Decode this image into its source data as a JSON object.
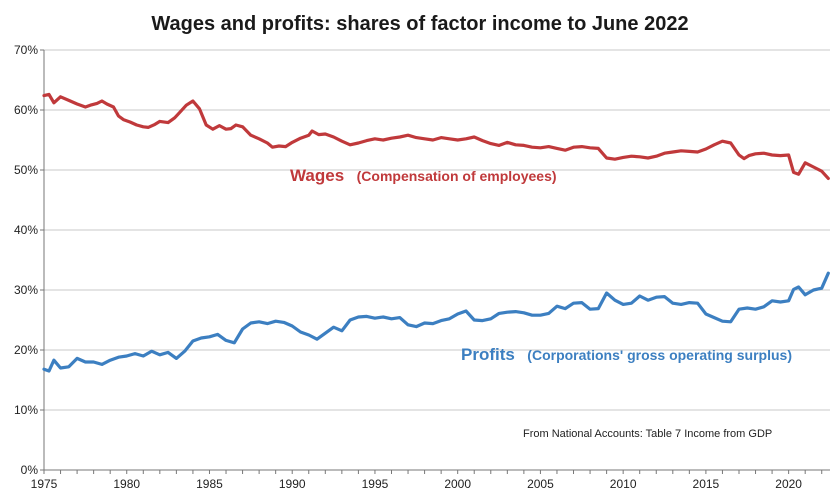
{
  "chart_data": {
    "type": "line",
    "title": "Wages and profits: shares of factor income to June 2022",
    "xlim": [
      1975,
      2022.5
    ],
    "ylim": [
      0,
      70
    ],
    "yticks": [
      0,
      10,
      20,
      30,
      40,
      50,
      60,
      70
    ],
    "ytick_labels": [
      "0%",
      "10%",
      "20%",
      "30%",
      "40%",
      "50%",
      "60%",
      "70%"
    ],
    "xticks": [
      1975,
      1980,
      1985,
      1990,
      1995,
      2000,
      2005,
      2010,
      2015,
      2020
    ],
    "xtick_labels": [
      "1975",
      "1980",
      "1985",
      "1990",
      "1995",
      "2000",
      "2005",
      "2010",
      "2015",
      "2020"
    ],
    "grid": "horizontal",
    "annotations": {
      "source": "From National Accounts: Table 7 Income from GDP"
    },
    "series": [
      {
        "name": "Wages",
        "description": "(Compensation of employees)",
        "color": "#c0393b",
        "x": [
          1975.0,
          1975.3,
          1975.6,
          1976.0,
          1976.5,
          1977.0,
          1977.5,
          1977.8,
          1978.2,
          1978.5,
          1978.8,
          1979.2,
          1979.5,
          1979.8,
          1980.2,
          1980.6,
          1981.0,
          1981.3,
          1981.7,
          1982.0,
          1982.5,
          1982.9,
          1983.2,
          1983.6,
          1984.0,
          1984.4,
          1984.8,
          1985.2,
          1985.6,
          1986.0,
          1986.3,
          1986.6,
          1987.0,
          1987.5,
          1988.0,
          1988.5,
          1988.8,
          1989.2,
          1989.6,
          1990.0,
          1990.5,
          1991.0,
          1991.2,
          1991.6,
          1992.0,
          1992.5,
          1993.0,
          1993.5,
          1994.0,
          1994.5,
          1995.0,
          1995.5,
          1996.0,
          1996.5,
          1997.0,
          1997.5,
          1998.0,
          1998.5,
          1999.0,
          1999.5,
          2000.0,
          2000.5,
          2001.0,
          2001.5,
          2002.0,
          2002.5,
          2003.0,
          2003.5,
          2004.0,
          2004.5,
          2005.0,
          2005.5,
          2006.0,
          2006.5,
          2007.0,
          2007.5,
          2008.0,
          2008.5,
          2009.0,
          2009.5,
          2010.0,
          2010.5,
          2011.0,
          2011.5,
          2012.0,
          2012.5,
          2013.0,
          2013.5,
          2014.0,
          2014.5,
          2015.0,
          2015.5,
          2016.0,
          2016.5,
          2017.0,
          2017.3,
          2017.6,
          2018.0,
          2018.5,
          2019.0,
          2019.5,
          2020.0,
          2020.3,
          2020.6,
          2021.0,
          2021.5,
          2022.0,
          2022.4
        ],
        "values": [
          62.4,
          62.6,
          61.2,
          62.2,
          61.6,
          61.0,
          60.5,
          60.8,
          61.1,
          61.5,
          61.0,
          60.5,
          59.0,
          58.4,
          58.0,
          57.5,
          57.2,
          57.1,
          57.6,
          58.1,
          57.9,
          58.7,
          59.6,
          60.8,
          61.5,
          60.2,
          57.5,
          56.8,
          57.4,
          56.8,
          56.9,
          57.5,
          57.2,
          55.8,
          55.2,
          54.5,
          53.8,
          54.0,
          53.9,
          54.6,
          55.3,
          55.8,
          56.5,
          55.9,
          56.0,
          55.5,
          54.8,
          54.2,
          54.5,
          54.9,
          55.2,
          55.0,
          55.3,
          55.5,
          55.8,
          55.4,
          55.2,
          55.0,
          55.4,
          55.2,
          55.0,
          55.2,
          55.5,
          54.9,
          54.4,
          54.1,
          54.6,
          54.2,
          54.1,
          53.8,
          53.7,
          53.9,
          53.6,
          53.3,
          53.8,
          53.9,
          53.7,
          53.6,
          52.0,
          51.8,
          52.1,
          52.3,
          52.2,
          52.0,
          52.3,
          52.8,
          53.0,
          53.2,
          53.1,
          53.0,
          53.5,
          54.2,
          54.8,
          54.5,
          52.5,
          51.9,
          52.4,
          52.7,
          52.8,
          52.5,
          52.4,
          52.5,
          49.6,
          49.3,
          51.2,
          50.5,
          49.8,
          48.6
        ]
      },
      {
        "name": "Profits",
        "description": "(Corporations' gross operating surplus)",
        "color": "#3c7fc1",
        "x": [
          1975.0,
          1975.3,
          1975.6,
          1976.0,
          1976.5,
          1977.0,
          1977.5,
          1978.0,
          1978.5,
          1979.0,
          1979.5,
          1980.0,
          1980.5,
          1981.0,
          1981.5,
          1982.0,
          1982.5,
          1983.0,
          1983.5,
          1984.0,
          1984.5,
          1985.0,
          1985.5,
          1986.0,
          1986.5,
          1987.0,
          1987.5,
          1988.0,
          1988.5,
          1989.0,
          1989.5,
          1990.0,
          1990.5,
          1991.0,
          1991.5,
          1992.0,
          1992.5,
          1993.0,
          1993.5,
          1994.0,
          1994.5,
          1995.0,
          1995.5,
          1996.0,
          1996.5,
          1997.0,
          1997.5,
          1998.0,
          1998.5,
          1999.0,
          1999.5,
          2000.0,
          2000.5,
          2001.0,
          2001.5,
          2002.0,
          2002.5,
          2003.0,
          2003.5,
          2004.0,
          2004.5,
          2005.0,
          2005.5,
          2006.0,
          2006.5,
          2007.0,
          2007.5,
          2008.0,
          2008.5,
          2009.0,
          2009.5,
          2010.0,
          2010.5,
          2011.0,
          2011.5,
          2012.0,
          2012.5,
          2013.0,
          2013.5,
          2014.0,
          2014.5,
          2015.0,
          2015.5,
          2016.0,
          2016.5,
          2017.0,
          2017.5,
          2018.0,
          2018.5,
          2019.0,
          2019.5,
          2020.0,
          2020.3,
          2020.6,
          2021.0,
          2021.5,
          2022.0,
          2022.4
        ],
        "values": [
          16.8,
          16.5,
          18.3,
          17.0,
          17.2,
          18.6,
          18.0,
          18.0,
          17.6,
          18.3,
          18.8,
          19.0,
          19.4,
          19.0,
          19.8,
          19.2,
          19.6,
          18.6,
          19.8,
          21.5,
          22.0,
          22.2,
          22.6,
          21.6,
          21.2,
          23.5,
          24.5,
          24.7,
          24.4,
          24.8,
          24.6,
          24.0,
          23.0,
          22.5,
          21.8,
          22.8,
          23.8,
          23.2,
          25.0,
          25.5,
          25.6,
          25.3,
          25.5,
          25.2,
          25.4,
          24.2,
          23.9,
          24.5,
          24.4,
          24.9,
          25.2,
          26.0,
          26.5,
          25.0,
          24.9,
          25.2,
          26.1,
          26.3,
          26.4,
          26.2,
          25.8,
          25.8,
          26.1,
          27.3,
          26.9,
          27.8,
          27.9,
          26.8,
          26.9,
          29.5,
          28.3,
          27.6,
          27.8,
          29.0,
          28.3,
          28.8,
          28.9,
          27.8,
          27.6,
          27.9,
          27.8,
          26.0,
          25.4,
          24.8,
          24.7,
          26.8,
          27.0,
          26.8,
          27.2,
          28.2,
          28.0,
          28.2,
          30.1,
          30.5,
          29.2,
          30.0,
          30.3,
          32.8
        ]
      }
    ]
  }
}
